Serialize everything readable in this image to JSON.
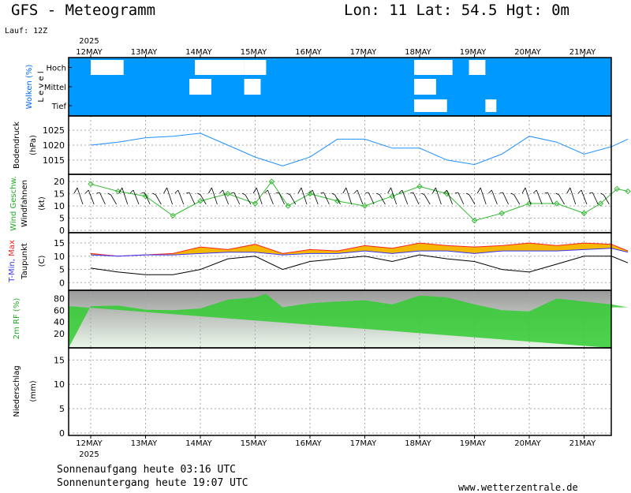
{
  "header": {
    "title": "GFS - Meteogramm",
    "location": "Lon: 11 Lat: 54.5 Hgt: 0m",
    "run": "Lauf: 12Z",
    "year_top": "2025",
    "year_bottom": "2025"
  },
  "footer": {
    "sunrise": "Sonnenaufgang heute 03:16 UTC",
    "sunset": "Sonnenuntergang heute 19:07 UTC",
    "website": "www.wetterzentrale.de"
  },
  "colors": {
    "cloud_bg": "#0099ff",
    "pressure_line": "#1e90ff",
    "wind_line": "#33bb33",
    "tmin": "#3333ff",
    "tmax": "#ff2222",
    "temp_fill": "#f5b800",
    "dewpoint": "#000000",
    "humidity": "#33cc33"
  },
  "chart_data": [
    {
      "type": "heatmap",
      "name": "clouds",
      "ylabel": "Wolken (%)",
      "ylabel_extra": "L e v e l",
      "levels": [
        "Hoch",
        "Mittel",
        "Tief"
      ],
      "dates": [
        "12MAY",
        "13MAY",
        "14MAY",
        "15MAY",
        "16MAY",
        "17MAY",
        "18MAY",
        "19MAY",
        "20MAY",
        "21MAY"
      ],
      "note": "low cloud fraction shown as white patches; mostly blue (clear)",
      "clear_patches": [
        {
          "level": "Hoch",
          "from": 0.0,
          "to": 0.6
        },
        {
          "level": "Hoch",
          "from": 1.9,
          "to": 2.8
        },
        {
          "level": "Hoch",
          "from": 2.8,
          "to": 3.2
        },
        {
          "level": "Hoch",
          "from": 5.9,
          "to": 6.6
        },
        {
          "level": "Hoch",
          "from": 6.9,
          "to": 7.2
        },
        {
          "level": "Mittel",
          "from": 1.8,
          "to": 2.2
        },
        {
          "level": "Mittel",
          "from": 2.8,
          "to": 3.1
        },
        {
          "level": "Mittel",
          "from": 5.9,
          "to": 6.3
        },
        {
          "level": "Tief",
          "from": 5.9,
          "to": 6.5
        },
        {
          "level": "Tief",
          "from": 7.2,
          "to": 7.4
        }
      ]
    },
    {
      "type": "line",
      "name": "pressure",
      "ylabel": "Bodendruck",
      "unit": "(hPa)",
      "ylim": [
        1011,
        1029
      ],
      "yticks": [
        1015,
        1020,
        1025
      ],
      "x": [
        0,
        0.5,
        1.0,
        1.5,
        2.0,
        2.5,
        3.0,
        3.5,
        4.0,
        4.5,
        5.0,
        5.5,
        6.0,
        6.5,
        7.0,
        7.5,
        8.0,
        8.5,
        9.0,
        9.5,
        9.8
      ],
      "values": [
        1020,
        1021,
        1022.5,
        1023,
        1024,
        1020,
        1016,
        1013,
        1016,
        1022,
        1022,
        1019,
        1019,
        1015,
        1013.5,
        1017,
        1023,
        1021,
        1017,
        1019.5,
        1022
      ]
    },
    {
      "type": "line",
      "name": "wind",
      "ylabel": "Wind Geschw.",
      "ylabel2": "Windfahnen",
      "unit": "(kt)",
      "ylim": [
        0,
        22
      ],
      "yticks": [
        0,
        5,
        10,
        15,
        20
      ],
      "x": [
        0,
        0.5,
        1.0,
        1.5,
        2.0,
        2.5,
        3.0,
        3.3,
        3.6,
        4.0,
        4.5,
        5.0,
        5.5,
        6.0,
        6.5,
        7.0,
        7.5,
        8.0,
        8.5,
        9.0,
        9.3,
        9.6,
        9.8
      ],
      "values": [
        19,
        16,
        14,
        6,
        12,
        15,
        11,
        20,
        10,
        15,
        12,
        10,
        14,
        18,
        15,
        4,
        7,
        11,
        11,
        7,
        11,
        17,
        16
      ]
    },
    {
      "type": "line",
      "name": "temperature",
      "ylabel": "T-Min, Max",
      "ylabel2": "Taupunkt",
      "unit": "(C)",
      "ylim": [
        -2,
        18
      ],
      "yticks": [
        0,
        5,
        10,
        15
      ],
      "x": [
        0,
        0.5,
        1.0,
        1.5,
        2.0,
        2.5,
        3.0,
        3.5,
        4.0,
        4.5,
        5.0,
        5.5,
        6.0,
        6.5,
        7.0,
        7.5,
        8.0,
        8.5,
        9.0,
        9.5,
        9.8
      ],
      "tmin": [
        10.5,
        10,
        10.5,
        10.5,
        11,
        11.5,
        11.5,
        10.5,
        11,
        11,
        12,
        11,
        12,
        12,
        11,
        12,
        12,
        12,
        12.5,
        13,
        11.5
      ],
      "tmax": [
        11,
        10,
        10.5,
        11,
        13.5,
        12.5,
        14.5,
        11,
        12.5,
        12,
        14,
        13,
        15,
        14,
        13.5,
        14,
        15,
        14,
        15,
        14.5,
        12
      ],
      "dewpoint": [
        5.5,
        4,
        3,
        3,
        5,
        9,
        10,
        5,
        8,
        9,
        10,
        8,
        10.5,
        9,
        8,
        5,
        4,
        7,
        10,
        10,
        7.5
      ]
    },
    {
      "type": "area",
      "name": "humidity",
      "ylabel": "2m RF (%)",
      "ylim": [
        0,
        90
      ],
      "yticks": [
        20,
        40,
        60,
        80
      ],
      "x": [
        0,
        0.5,
        1.0,
        1.5,
        2.0,
        2.5,
        3.0,
        3.2,
        3.5,
        4.0,
        4.5,
        5.0,
        5.5,
        6.0,
        6.5,
        7.0,
        7.5,
        8.0,
        8.5,
        9.0,
        9.5,
        9.8
      ],
      "values": [
        67,
        68,
        61,
        60,
        63,
        78,
        82,
        88,
        65,
        72,
        75,
        77,
        70,
        85,
        82,
        70,
        60,
        58,
        80,
        75,
        70,
        65
      ]
    },
    {
      "type": "bar",
      "name": "precipitation",
      "ylabel": "Niederschlag",
      "unit": "(mm)",
      "ylim": [
        0,
        17
      ],
      "yticks": [
        0,
        5,
        10,
        15
      ],
      "values": []
    }
  ]
}
